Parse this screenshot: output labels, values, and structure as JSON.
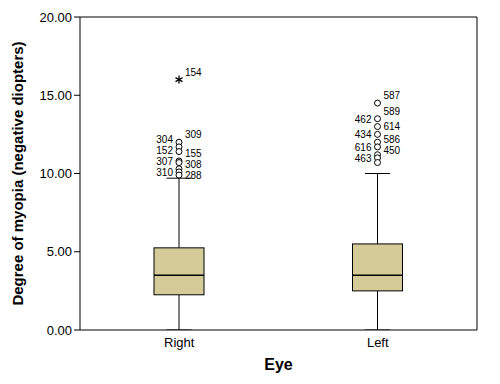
{
  "chart_data": {
    "type": "box",
    "x_label": "Eye",
    "y_label": "Degree of myopia (negative diopters)",
    "categories": [
      "Right",
      "Left"
    ],
    "color": "#d4cb98",
    "ylim": [
      0,
      20
    ],
    "yticks": [
      {
        "value": 0,
        "label": "0.00"
      },
      {
        "value": 5,
        "label": "5.00"
      },
      {
        "value": 10,
        "label": "10.00"
      },
      {
        "value": 15,
        "label": "15.00"
      },
      {
        "value": 20,
        "label": "20.00"
      }
    ],
    "boxes": [
      {
        "min": 0,
        "q1": 2.25,
        "median": 3.5,
        "q3": 5.25,
        "max": 9.7,
        "outliers": [
          {
            "label": "154",
            "value": 16,
            "marker": "star"
          },
          {
            "label": "309",
            "value": 12.0,
            "marker": "circle"
          },
          {
            "label": "304",
            "value": 11.7,
            "marker": "circle"
          },
          {
            "label": "152",
            "value": 11.4,
            "marker": "circle"
          },
          {
            "label": "155",
            "value": 10.8,
            "marker": "circle"
          },
          {
            "label": "307",
            "value": 10.7,
            "marker": "circle"
          },
          {
            "label": "308",
            "value": 10.3,
            "marker": "circle"
          },
          {
            "label": "310",
            "value": 10.1,
            "marker": "circle"
          },
          {
            "label": "288",
            "value": 9.9,
            "marker": "circle"
          }
        ]
      },
      {
        "min": 0,
        "q1": 2.5,
        "median": 3.5,
        "q3": 5.5,
        "max": 10.0,
        "outliers": [
          {
            "label": "587",
            "value": 14.5,
            "marker": "circle"
          },
          {
            "label": "589",
            "value": 13.5,
            "marker": "circle"
          },
          {
            "label": "462",
            "value": 13.0,
            "marker": "circle"
          },
          {
            "label": "614",
            "value": 12.5,
            "marker": "circle"
          },
          {
            "label": "434",
            "value": 12.0,
            "marker": "circle"
          },
          {
            "label": "586",
            "value": 11.7,
            "marker": "circle"
          },
          {
            "label": "616",
            "value": 11.2,
            "marker": "circle"
          },
          {
            "label": "450",
            "value": 11.0,
            "marker": "circle"
          },
          {
            "label": "463",
            "value": 10.7,
            "marker": "circle"
          }
        ]
      }
    ]
  }
}
